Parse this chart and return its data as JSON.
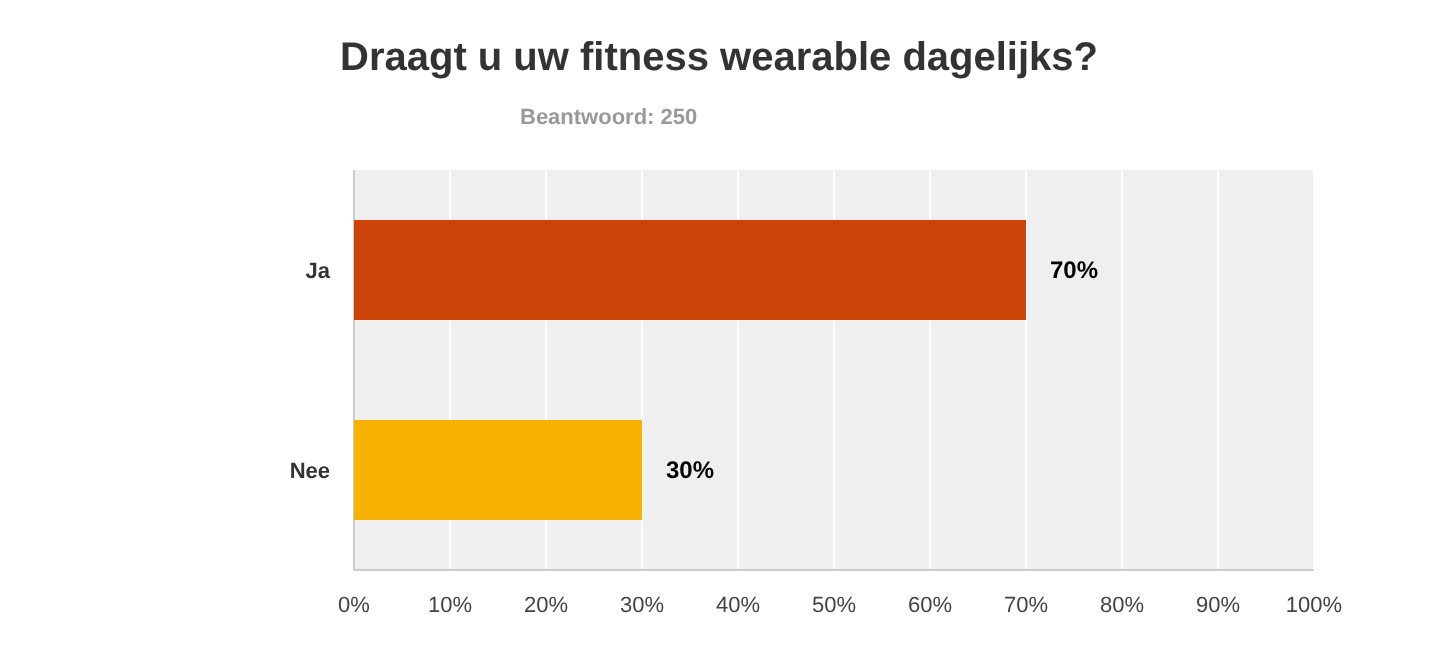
{
  "chart_data": {
    "type": "bar",
    "orientation": "horizontal",
    "title": "Draagt u uw fitness wearable dagelijks?",
    "subtitle": "Beantwoord: 250",
    "categories": [
      "Ja",
      "Nee"
    ],
    "values": [
      70,
      30
    ],
    "colors": [
      "#cc4408",
      "#f9b100"
    ],
    "value_labels": [
      "70%",
      "30%"
    ],
    "xlim": [
      0,
      100
    ],
    "xticks": [
      {
        "value": 0,
        "label": "0%"
      },
      {
        "value": 10,
        "label": "10%"
      },
      {
        "value": 20,
        "label": "20%"
      },
      {
        "value": 30,
        "label": "30%"
      },
      {
        "value": 40,
        "label": "40%"
      },
      {
        "value": 50,
        "label": "50%"
      },
      {
        "value": 60,
        "label": "60%"
      },
      {
        "value": 70,
        "label": "70%"
      },
      {
        "value": 80,
        "label": "80%"
      },
      {
        "value": 90,
        "label": "90%"
      },
      {
        "value": 100,
        "label": "100%"
      }
    ],
    "grid": "x"
  }
}
